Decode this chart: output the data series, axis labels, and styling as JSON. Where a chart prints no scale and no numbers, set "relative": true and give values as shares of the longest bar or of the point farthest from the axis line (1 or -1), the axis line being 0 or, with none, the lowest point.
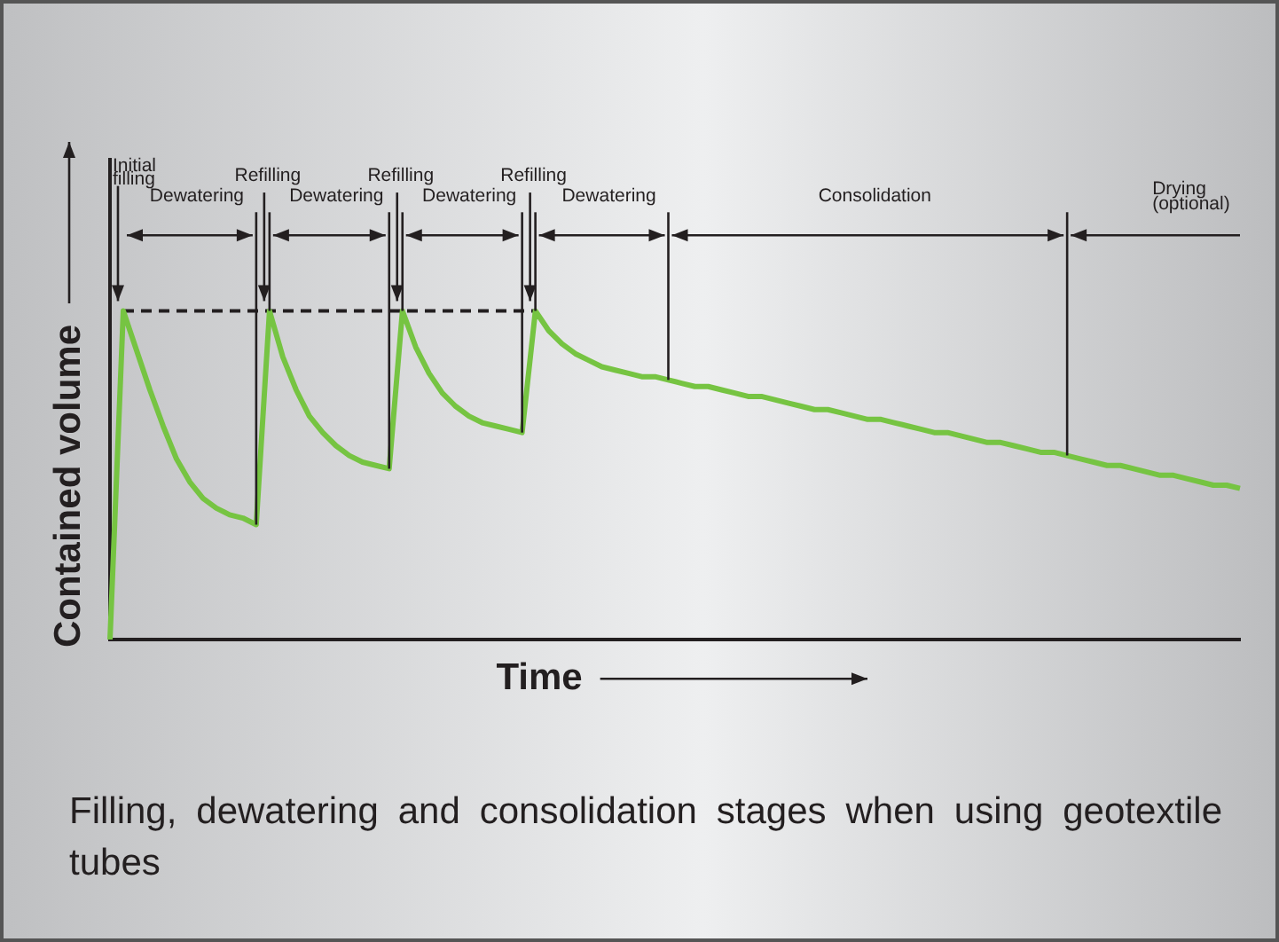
{
  "chart_data": {
    "type": "line",
    "relative": true,
    "xlabel": "Time",
    "ylabel": "Contained volume",
    "categories": [
      null,
      null,
      null,
      null,
      null,
      null,
      null,
      null,
      null,
      null,
      null,
      null,
      null,
      null,
      null,
      null,
      null,
      null,
      null,
      null,
      null,
      null,
      null,
      null,
      null,
      null,
      null,
      null,
      null,
      null,
      null,
      null,
      null,
      null,
      null,
      null,
      null,
      null,
      null,
      null,
      null,
      null,
      null,
      null,
      null,
      null,
      null,
      null,
      null,
      null,
      null,
      null,
      null,
      null,
      null,
      null,
      null,
      null,
      null,
      null,
      null,
      null,
      null,
      null,
      null,
      null,
      null,
      null,
      null,
      null,
      null,
      null,
      null,
      null,
      null,
      null,
      null,
      null,
      null,
      null,
      null,
      null,
      null,
      null,
      null,
      null
    ],
    "series": [
      {
        "color": "#76c442",
        "values": [
          0,
          1,
          0.88,
          0.76,
          0.65,
          0.55,
          0.48,
          0.43,
          0.4,
          0.38,
          0.37,
          0.35,
          1,
          0.86,
          0.76,
          0.68,
          0.63,
          0.59,
          0.56,
          0.54,
          0.53,
          0.52,
          1,
          0.89,
          0.81,
          0.75,
          0.71,
          0.68,
          0.66,
          0.65,
          0.64,
          0.63,
          1,
          0.94,
          0.9,
          0.87,
          0.85,
          0.83,
          0.82,
          0.81,
          0.8,
          0.8,
          0.79,
          0.78,
          0.77,
          0.77,
          0.76,
          0.75,
          0.74,
          0.74,
          0.73,
          0.72,
          0.71,
          0.7,
          0.7,
          0.69,
          0.68,
          0.67,
          0.67,
          0.66,
          0.65,
          0.64,
          0.63,
          0.63,
          0.62,
          0.61,
          0.6,
          0.6,
          0.59,
          0.58,
          0.57,
          0.57,
          0.56,
          0.55,
          0.54,
          0.53,
          0.53,
          0.52,
          0.51,
          0.5,
          0.5,
          0.49,
          0.48,
          0.47,
          0.47,
          0.46
        ]
      },
      {
        "color": "#231f20",
        "line_style": "dashed",
        "values": [
          null,
          1,
          1,
          1,
          1,
          1,
          1,
          1,
          1,
          1,
          1,
          1,
          1,
          1,
          1,
          1,
          1,
          1,
          1,
          1,
          1,
          1,
          1,
          1,
          1,
          1,
          1,
          1,
          1,
          1,
          1,
          1,
          1,
          null,
          null,
          null,
          null,
          null,
          null,
          null,
          null,
          null,
          null,
          null,
          null,
          null,
          null,
          null,
          null,
          null,
          null,
          null,
          null,
          null,
          null,
          null,
          null,
          null,
          null,
          null,
          null,
          null,
          null,
          null,
          null,
          null,
          null,
          null,
          null,
          null,
          null,
          null,
          null,
          null,
          null,
          null,
          null,
          null,
          null,
          null,
          null,
          null,
          null,
          null,
          null,
          null
        ]
      }
    ],
    "annotations": [
      "Initial filling",
      "Refilling",
      "Refilling",
      "Refilling",
      "Dewatering",
      "Dewatering",
      "Dewatering",
      "Dewatering",
      "Consolidation",
      "Drying (optional)",
      "Filling, dewatering and consolidation stages when using geotextile tubes"
    ]
  }
}
